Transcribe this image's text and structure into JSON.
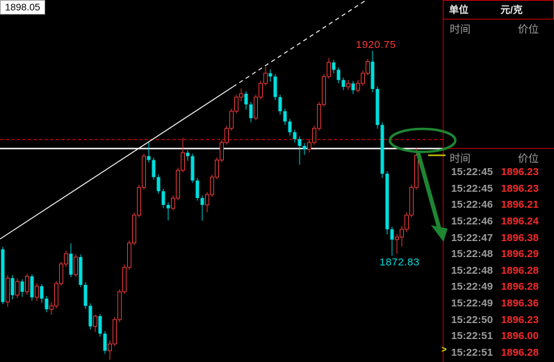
{
  "panel": {
    "unit_label": "单位",
    "unit_value": "元/克",
    "columns": [
      "时间",
      "价位"
    ],
    "ticks": [
      {
        "time": "15:22:45",
        "price": "1896.23"
      },
      {
        "time": "15:22:45",
        "price": "1896.23"
      },
      {
        "time": "15:22:46",
        "price": "1896.21"
      },
      {
        "time": "15:22:46",
        "price": "1896.24"
      },
      {
        "time": "15:22:47",
        "price": "1896.38"
      },
      {
        "time": "15:22:48",
        "price": "1896.29"
      },
      {
        "time": "15:22:48",
        "price": "1896.28"
      },
      {
        "time": "15:22:49",
        "price": "1896.28"
      },
      {
        "time": "15:22:49",
        "price": "1896.36"
      },
      {
        "time": "15:22:50",
        "price": "1896.23"
      },
      {
        "time": "15:22:51",
        "price": "1896.00"
      },
      {
        "time": "15:22:51",
        "price": "1896.28"
      }
    ],
    "latest_marker": ">"
  },
  "chart_data": {
    "type": "candlestick",
    "unit": "元/克",
    "title": "",
    "high_label": "1920.75",
    "low_label": "1872.83",
    "current_price_label": "1898.05",
    "session_high": 1920.75,
    "session_low": 1872.83,
    "last_price": 1896.28,
    "ylim": [
      1845,
      1925
    ],
    "levels": {
      "resistance_dashed_red": 1900.0,
      "current_white_line": 1898.05,
      "last_tick_yellow_marker": 1896.3
    },
    "annotations": [
      "ascending white support trendline, solid then dashed extension",
      "green hand-drawn ellipse circling current price 1898.05",
      "green arrow pointing down-right from circled price"
    ],
    "colors": {
      "up_candle": "#f93b3b",
      "down_candle": "#00dede",
      "dashed_level": "#c40000",
      "current_line": "#ffffff",
      "trendline": "#ffffff",
      "annotation_green": "#1e8632",
      "yellow_marker": "#d8d800",
      "panel_border": "#d40000",
      "tick_price_text": "#f42a2a",
      "tick_time_text": "#9c9c9c"
    },
    "candles": [
      [
        1874.3,
        1874.9,
        1861.5,
        1862.0
      ],
      [
        1862.0,
        1868.3,
        1860.9,
        1867.6
      ],
      [
        1867.6,
        1868.3,
        1862.6,
        1863.6
      ],
      [
        1863.6,
        1867.5,
        1862.9,
        1866.8
      ],
      [
        1866.8,
        1867.3,
        1863.2,
        1864.4
      ],
      [
        1864.4,
        1868.6,
        1863.7,
        1868.0
      ],
      [
        1868.0,
        1868.5,
        1862.3,
        1863.1
      ],
      [
        1863.1,
        1866.4,
        1862.2,
        1865.7
      ],
      [
        1865.7,
        1866.2,
        1861.8,
        1862.8
      ],
      [
        1862.8,
        1863.4,
        1859.6,
        1860.3
      ],
      [
        1860.3,
        1862.0,
        1859.0,
        1861.1
      ],
      [
        1861.1,
        1866.9,
        1860.5,
        1866.3
      ],
      [
        1866.3,
        1871.4,
        1865.8,
        1870.9
      ],
      [
        1870.9,
        1874.0,
        1870.2,
        1873.3
      ],
      [
        1873.3,
        1875.7,
        1867.8,
        1868.4
      ],
      [
        1868.4,
        1873.2,
        1867.9,
        1872.5
      ],
      [
        1872.5,
        1873.1,
        1865.5,
        1866.0
      ],
      [
        1866.0,
        1866.6,
        1860.4,
        1861.1
      ],
      [
        1861.1,
        1861.7,
        1855.6,
        1856.3
      ],
      [
        1856.3,
        1859.0,
        1855.0,
        1858.7
      ],
      [
        1858.7,
        1859.2,
        1853.9,
        1854.6
      ],
      [
        1854.6,
        1855.2,
        1849.9,
        1850.6
      ],
      [
        1850.6,
        1853.0,
        1848.5,
        1852.2
      ],
      [
        1852.2,
        1858.5,
        1851.7,
        1857.9
      ],
      [
        1857.9,
        1865.0,
        1857.3,
        1864.4
      ],
      [
        1864.4,
        1870.8,
        1863.9,
        1870.1
      ],
      [
        1870.1,
        1876.4,
        1869.6,
        1875.8
      ],
      [
        1875.8,
        1882.9,
        1875.3,
        1882.3
      ],
      [
        1882.3,
        1889.4,
        1881.8,
        1888.8
      ],
      [
        1888.8,
        1896.7,
        1888.3,
        1896.1
      ],
      [
        1896.1,
        1899.3,
        1894.6,
        1895.2
      ],
      [
        1895.2,
        1895.8,
        1890.6,
        1891.2
      ],
      [
        1891.2,
        1891.8,
        1887.3,
        1887.9
      ],
      [
        1887.9,
        1888.5,
        1883.9,
        1884.7
      ],
      [
        1884.7,
        1885.3,
        1881.1,
        1883.9
      ],
      [
        1883.9,
        1886.9,
        1883.4,
        1886.3
      ],
      [
        1886.3,
        1893.4,
        1885.8,
        1892.8
      ],
      [
        1892.8,
        1900.4,
        1892.3,
        1896.9
      ],
      [
        1896.9,
        1897.5,
        1895.0,
        1896.1
      ],
      [
        1896.1,
        1896.7,
        1889.9,
        1890.4
      ],
      [
        1890.4,
        1891.0,
        1885.7,
        1886.3
      ],
      [
        1886.3,
        1886.9,
        1881.0,
        1884.7
      ],
      [
        1884.7,
        1887.7,
        1883.0,
        1887.1
      ],
      [
        1887.1,
        1891.8,
        1886.6,
        1891.2
      ],
      [
        1891.2,
        1895.8,
        1890.7,
        1895.2
      ],
      [
        1895.2,
        1899.9,
        1894.7,
        1899.3
      ],
      [
        1899.3,
        1903.2,
        1898.8,
        1902.6
      ],
      [
        1902.6,
        1907.2,
        1902.1,
        1906.6
      ],
      [
        1906.6,
        1910.5,
        1906.1,
        1909.9
      ],
      [
        1909.9,
        1911.9,
        1908.9,
        1910.7
      ],
      [
        1910.7,
        1911.3,
        1907.0,
        1908.2
      ],
      [
        1908.2,
        1908.8,
        1904.0,
        1905.0
      ],
      [
        1905.0,
        1910.5,
        1904.5,
        1909.9
      ],
      [
        1909.9,
        1913.7,
        1909.4,
        1913.1
      ],
      [
        1913.1,
        1917.0,
        1912.6,
        1915.5
      ],
      [
        1915.5,
        1916.4,
        1913.5,
        1914.7
      ],
      [
        1914.7,
        1915.3,
        1909.2,
        1909.9
      ],
      [
        1909.9,
        1910.5,
        1905.8,
        1906.6
      ],
      [
        1906.6,
        1907.2,
        1903.4,
        1904.2
      ],
      [
        1904.2,
        1904.8,
        1900.9,
        1901.7
      ],
      [
        1901.7,
        1902.3,
        1899.3,
        1900.1
      ],
      [
        1900.1,
        1900.7,
        1894.1,
        1898.5
      ],
      [
        1898.5,
        1899.1,
        1896.4,
        1897.7
      ],
      [
        1897.7,
        1900.0,
        1897.0,
        1899.3
      ],
      [
        1899.3,
        1903.2,
        1898.8,
        1902.6
      ],
      [
        1902.6,
        1908.8,
        1902.1,
        1908.2
      ],
      [
        1908.2,
        1915.3,
        1907.7,
        1914.7
      ],
      [
        1914.7,
        1919.1,
        1914.2,
        1918.0
      ],
      [
        1918.0,
        1918.6,
        1915.4,
        1916.3
      ],
      [
        1916.3,
        1916.9,
        1913.1,
        1913.9
      ],
      [
        1913.9,
        1914.5,
        1911.5,
        1912.3
      ],
      [
        1912.3,
        1913.9,
        1911.6,
        1913.1
      ],
      [
        1913.1,
        1913.7,
        1910.6,
        1911.5
      ],
      [
        1911.5,
        1913.9,
        1911.0,
        1913.1
      ],
      [
        1913.1,
        1916.1,
        1912.6,
        1915.5
      ],
      [
        1915.5,
        1918.8,
        1915.0,
        1918.2
      ],
      [
        1918.2,
        1920.75,
        1911.0,
        1911.8
      ],
      [
        1911.8,
        1912.4,
        1902.5,
        1903.4
      ],
      [
        1903.4,
        1904.0,
        1891.0,
        1892.0
      ],
      [
        1892.0,
        1892.6,
        1877.8,
        1879.0
      ],
      [
        1879.0,
        1879.6,
        1872.83,
        1876.6
      ],
      [
        1876.6,
        1877.9,
        1873.3,
        1877.2
      ],
      [
        1877.2,
        1879.8,
        1875.0,
        1879.0
      ],
      [
        1879.0,
        1883.0,
        1878.3,
        1882.3
      ],
      [
        1882.3,
        1889.5,
        1881.8,
        1888.8
      ],
      [
        1888.8,
        1898.1,
        1888.3,
        1896.28
      ]
    ]
  }
}
